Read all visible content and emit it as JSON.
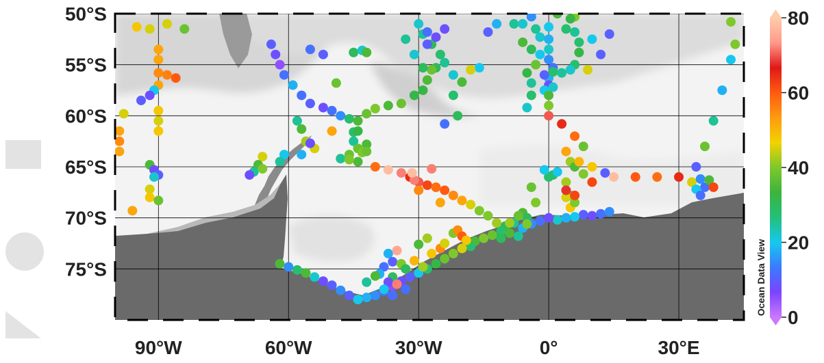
{
  "map": {
    "extent": {
      "lon_min": -100,
      "lon_max": 45,
      "lat_min": -80,
      "lat_max": -50
    },
    "lat_ticks": [
      {
        "value": -50,
        "label": "50°S"
      },
      {
        "value": -55,
        "label": "55°S"
      },
      {
        "value": -60,
        "label": "60°S"
      },
      {
        "value": -65,
        "label": "65°S"
      },
      {
        "value": -70,
        "label": "70°S"
      },
      {
        "value": -75,
        "label": "75°S"
      }
    ],
    "lon_ticks": [
      {
        "value": -90,
        "label": "90°W"
      },
      {
        "value": -60,
        "label": "60°W"
      },
      {
        "value": -30,
        "label": "30°W"
      },
      {
        "value": 0,
        "label": "0°"
      },
      {
        "value": 30,
        "label": "30°E"
      }
    ],
    "colors": {
      "land": "#6a6a6a",
      "ocean_light": "#f3f3f3",
      "ocean_mid": "#dcdcdc",
      "ice_shelf": "#eaeaea",
      "grid": "#000000"
    }
  },
  "colorbar": {
    "title": "Ocean Data View",
    "range": [
      0,
      80
    ],
    "ticks": [
      {
        "value": 80,
        "label": "80"
      },
      {
        "value": 60,
        "label": "60"
      },
      {
        "value": 40,
        "label": "40"
      },
      {
        "value": 20,
        "label": "20"
      },
      {
        "value": 0,
        "label": "0"
      }
    ],
    "stops": [
      "#cc77ff",
      "#7a44ff",
      "#3a7bff",
      "#16c8ee",
      "#22c07a",
      "#3cb43c",
      "#7ec82c",
      "#f2d200",
      "#ff9a10",
      "#ff5a10",
      "#e01818",
      "#ff9a8a",
      "#ffccaa"
    ]
  },
  "chart_data": {
    "type": "scatter",
    "x_label": "",
    "y_label": "",
    "value_range": [
      0,
      80
    ],
    "points": [
      [
        -95,
        -51.3,
        48
      ],
      [
        -92,
        -51.5,
        45
      ],
      [
        -88,
        -51,
        45
      ],
      [
        -84,
        -51.5,
        38
      ],
      [
        -90,
        -53.5,
        52
      ],
      [
        -90,
        -54.5,
        52
      ],
      [
        -90,
        -55.8,
        55
      ],
      [
        -88,
        -56,
        56
      ],
      [
        -86,
        -56.3,
        60
      ],
      [
        -90,
        -57,
        52
      ],
      [
        -91,
        -57.5,
        20
      ],
      [
        -92,
        -58,
        8
      ],
      [
        -94,
        -58.5,
        10
      ],
      [
        -90,
        -59.5,
        48
      ],
      [
        -90,
        -60.5,
        45
      ],
      [
        -90,
        -61.5,
        48
      ],
      [
        -98,
        -59.8,
        45
      ],
      [
        -99,
        -61.5,
        52
      ],
      [
        -99,
        -62.5,
        55
      ],
      [
        -99,
        -63.5,
        52
      ],
      [
        -92,
        -64.8,
        35
      ],
      [
        -91,
        -65.3,
        8
      ],
      [
        -90,
        -65.8,
        10
      ],
      [
        -91,
        -66,
        22
      ],
      [
        -92,
        -67.2,
        45
      ],
      [
        -92,
        -68,
        48
      ],
      [
        -90,
        -68.3,
        38
      ],
      [
        -96,
        -69.3,
        52
      ],
      [
        -64,
        -53,
        10
      ],
      [
        -63,
        -54,
        8
      ],
      [
        -62,
        -55,
        5
      ],
      [
        -61,
        -56,
        12
      ],
      [
        -59,
        -57,
        18
      ],
      [
        -57,
        -58,
        12
      ],
      [
        -55,
        -58.8,
        10
      ],
      [
        -52,
        -59.2,
        8
      ],
      [
        -50,
        -59.5,
        12
      ],
      [
        -48,
        -60,
        15
      ],
      [
        -46,
        -60.3,
        28
      ],
      [
        -44,
        -60.5,
        35
      ],
      [
        -42,
        -59.8,
        38
      ],
      [
        -40,
        -59.3,
        40
      ],
      [
        -37,
        -59,
        35
      ],
      [
        -34,
        -58.8,
        38
      ],
      [
        -31,
        -58,
        32
      ],
      [
        -29,
        -57.5,
        32
      ],
      [
        -28,
        -56.5,
        35
      ],
      [
        -26,
        -55.3,
        30
      ],
      [
        -24,
        -54.8,
        25
      ],
      [
        -22,
        -56,
        22
      ],
      [
        -22,
        -58,
        28
      ],
      [
        -21,
        -60,
        30
      ],
      [
        -24,
        -60.8,
        12
      ],
      [
        -30,
        -51,
        22
      ],
      [
        -29,
        -52,
        25
      ],
      [
        -27,
        -53,
        30
      ],
      [
        -25,
        -54,
        28
      ],
      [
        -27,
        -55.5,
        38
      ],
      [
        -29,
        -55.3,
        30
      ],
      [
        -31,
        -54,
        22
      ],
      [
        -33,
        -52.5,
        25
      ],
      [
        -26,
        -52.3,
        8
      ],
      [
        -28,
        -53,
        10
      ],
      [
        -28,
        -51.8,
        12
      ],
      [
        -24,
        -51.5,
        8
      ],
      [
        -12,
        -51,
        18
      ],
      [
        -14,
        -51.8,
        10
      ],
      [
        -16,
        -55.3,
        20
      ],
      [
        -18,
        -55.5,
        45
      ],
      [
        -20,
        -56.7,
        35
      ],
      [
        -55,
        -53.5,
        12
      ],
      [
        -52,
        -54,
        10
      ],
      [
        -49,
        -56.8,
        38
      ],
      [
        -45,
        -53.8,
        30
      ],
      [
        -43,
        -53.6,
        22
      ],
      [
        -42,
        -53.8,
        35
      ],
      [
        -50,
        -61.5,
        52
      ],
      [
        -45,
        -61.6,
        28
      ],
      [
        -44,
        -61.5,
        32
      ],
      [
        -45,
        -62.5,
        25
      ],
      [
        -44,
        -63.2,
        38
      ],
      [
        -43,
        -63.6,
        40
      ],
      [
        -46,
        -63.8,
        38
      ],
      [
        -44,
        -64.5,
        35
      ],
      [
        -42,
        -62.8,
        35
      ],
      [
        -42,
        -63.5,
        38
      ],
      [
        -48,
        -64.2,
        25
      ],
      [
        -46,
        -64.3,
        40
      ],
      [
        -58,
        -60.5,
        25
      ],
      [
        -57,
        -61.3,
        35
      ],
      [
        -56,
        -62.5,
        42
      ],
      [
        -54,
        -63.2,
        45
      ],
      [
        -55,
        -62.7,
        8
      ],
      [
        -57,
        -63.8,
        18
      ],
      [
        -61,
        -63.8,
        20
      ],
      [
        -62,
        -64.5,
        25
      ],
      [
        -66,
        -64,
        45
      ],
      [
        -67,
        -64.8,
        35
      ],
      [
        -68,
        -65.5,
        25
      ],
      [
        -69,
        -65.8,
        8
      ],
      [
        -66,
        -65.2,
        40
      ],
      [
        -40,
        -65,
        58
      ],
      [
        -37,
        -65.3,
        78
      ],
      [
        -34,
        -65.6,
        72
      ],
      [
        -32,
        -66,
        65
      ],
      [
        -30,
        -66.5,
        70
      ],
      [
        -28,
        -66.8,
        62
      ],
      [
        -26,
        -67,
        58
      ],
      [
        -24,
        -67.3,
        60
      ],
      [
        -22,
        -67.8,
        55
      ],
      [
        -20,
        -68.3,
        52
      ],
      [
        -18,
        -68.7,
        45
      ],
      [
        -16,
        -69.3,
        40
      ],
      [
        -14,
        -69.8,
        40
      ],
      [
        -12,
        -70.5,
        42
      ],
      [
        -30,
        -67.3,
        55
      ],
      [
        -31,
        -66.3,
        72
      ],
      [
        -27,
        -65.2,
        72
      ],
      [
        -25,
        -68.5,
        52
      ],
      [
        -31.5,
        -65.6,
        78
      ],
      [
        -8,
        -51,
        25
      ],
      [
        -6,
        -51,
        22
      ],
      [
        -4,
        -50.3,
        15
      ],
      [
        -3,
        -51.5,
        25
      ],
      [
        -2,
        -52.3,
        22
      ],
      [
        -6,
        -52.8,
        35
      ],
      [
        -4,
        -53.5,
        30
      ],
      [
        -2,
        -54,
        20
      ],
      [
        -3,
        -55,
        38
      ],
      [
        -5,
        -55.8,
        32
      ],
      [
        -4,
        -56.8,
        25
      ],
      [
        -4,
        -58,
        28
      ],
      [
        -5,
        -59.2,
        22
      ],
      [
        0,
        -51.3,
        20
      ],
      [
        0,
        -52.5,
        18
      ],
      [
        0,
        -53.5,
        22
      ],
      [
        0,
        -54.5,
        15
      ],
      [
        1,
        -55.3,
        12
      ],
      [
        0,
        -56.3,
        18
      ],
      [
        -1,
        -56,
        10
      ],
      [
        0,
        -57,
        8
      ],
      [
        -1,
        -57.5,
        20
      ],
      [
        1,
        -57.2,
        22
      ],
      [
        0,
        -58,
        35
      ],
      [
        0,
        -59,
        40
      ],
      [
        0,
        -60,
        70
      ],
      [
        1,
        -55.7,
        28
      ],
      [
        6,
        -50.3,
        40
      ],
      [
        6,
        -51.8,
        25
      ],
      [
        7,
        -52.8,
        28
      ],
      [
        7,
        -53.8,
        32
      ],
      [
        6,
        -55,
        28
      ],
      [
        5,
        -55.5,
        22
      ],
      [
        3,
        -55.8,
        25
      ],
      [
        9,
        -55.5,
        45
      ],
      [
        10,
        -52.5,
        20
      ],
      [
        12,
        -54,
        10
      ],
      [
        14,
        -52,
        10
      ],
      [
        4,
        -51.5,
        28
      ],
      [
        2,
        -50,
        35
      ],
      [
        5,
        -50.5,
        32
      ],
      [
        3,
        -60.8,
        65
      ],
      [
        6,
        -62,
        58
      ],
      [
        8,
        -63,
        38
      ],
      [
        4,
        -63.5,
        52
      ],
      [
        5,
        -64.5,
        42
      ],
      [
        6,
        -65,
        35
      ],
      [
        7,
        -64.5,
        50
      ],
      [
        8,
        -65.7,
        40
      ],
      [
        10,
        -65,
        48
      ],
      [
        10,
        -66.5,
        62
      ],
      [
        13,
        -65.6,
        10
      ],
      [
        15,
        -66,
        78
      ],
      [
        1,
        -65.8,
        28
      ],
      [
        2,
        -65.5,
        20
      ],
      [
        0,
        -66,
        28
      ],
      [
        4,
        -66.5,
        42
      ],
      [
        5,
        -67.8,
        40
      ],
      [
        4,
        -68,
        45
      ],
      [
        5,
        -69,
        48
      ],
      [
        6,
        -68.5,
        40
      ],
      [
        6,
        -67.8,
        62
      ],
      [
        4,
        -67.3,
        68
      ],
      [
        -1,
        -65.3,
        20
      ],
      [
        -4,
        -67,
        38
      ],
      [
        -3,
        -68.5,
        40
      ],
      [
        -6,
        -69.5,
        35
      ],
      [
        -5,
        -70,
        30
      ],
      [
        -8,
        -70.5,
        25
      ],
      [
        -10,
        -70.8,
        30
      ],
      [
        -11,
        -71.3,
        28
      ],
      [
        -13,
        -71.7,
        38
      ],
      [
        -15,
        -72,
        40
      ],
      [
        -17,
        -72.3,
        35
      ],
      [
        -18,
        -72.8,
        28
      ],
      [
        -20,
        -73,
        45
      ],
      [
        -22,
        -73.5,
        40
      ],
      [
        -24,
        -74,
        38
      ],
      [
        -26,
        -74.5,
        32
      ],
      [
        -28,
        -75,
        28
      ],
      [
        -30,
        -75.4,
        20
      ],
      [
        -32,
        -75.8,
        10
      ],
      [
        -34,
        -76.2,
        8
      ],
      [
        -36,
        -76.7,
        5
      ],
      [
        -38,
        -77.2,
        12
      ],
      [
        -40,
        -77.6,
        15
      ],
      [
        -42,
        -77.8,
        18
      ],
      [
        -44,
        -78,
        20
      ],
      [
        -46,
        -77.6,
        10
      ],
      [
        -48,
        -77.1,
        15
      ],
      [
        -50,
        -76.6,
        10
      ],
      [
        -52,
        -76.2,
        8
      ],
      [
        -54,
        -75.8,
        22
      ],
      [
        -56,
        -75.4,
        35
      ],
      [
        -58,
        -75.1,
        28
      ],
      [
        -60,
        -74.8,
        15
      ],
      [
        -62,
        -74.5,
        35
      ],
      [
        -37,
        -73.5,
        18
      ],
      [
        -36,
        -74.3,
        10
      ],
      [
        -35,
        -73.2,
        75
      ],
      [
        -34,
        -74.5,
        40
      ],
      [
        -33,
        -75,
        30
      ],
      [
        -31,
        -74.2,
        50
      ],
      [
        -29,
        -74.8,
        42
      ],
      [
        -27,
        -73.5,
        48
      ],
      [
        -25,
        -73,
        55
      ],
      [
        -24,
        -72.5,
        45
      ],
      [
        -22,
        -71.5,
        40
      ],
      [
        -21,
        -71.2,
        55
      ],
      [
        -20,
        -71.8,
        60
      ],
      [
        -19,
        -72.2,
        48
      ],
      [
        -28,
        -72,
        42
      ],
      [
        -30,
        -72.6,
        35
      ],
      [
        -38,
        -74.8,
        12
      ],
      [
        -39,
        -75.5,
        18
      ],
      [
        -36,
        -75.8,
        30
      ],
      [
        -37,
        -76.3,
        8
      ],
      [
        -35,
        -76.5,
        72
      ],
      [
        -33,
        -77,
        12
      ],
      [
        -38,
        -77,
        20
      ],
      [
        -40,
        -75.7,
        35
      ],
      [
        -42,
        -76.3,
        25
      ],
      [
        -36,
        -77.6,
        12
      ],
      [
        8,
        -69.7,
        10
      ],
      [
        10,
        -69.8,
        8
      ],
      [
        12,
        -69.6,
        12
      ],
      [
        14,
        -69.4,
        15
      ],
      [
        6,
        -69.9,
        20
      ],
      [
        4,
        -70,
        18
      ],
      [
        2,
        -70.2,
        22
      ],
      [
        0,
        -70,
        8
      ],
      [
        -2,
        -70.3,
        12
      ],
      [
        -4,
        -70.6,
        15
      ],
      [
        -6,
        -71,
        18
      ],
      [
        -7,
        -69.8,
        38
      ],
      [
        -9,
        -70.5,
        42
      ],
      [
        -5,
        -70.6,
        40
      ],
      [
        -7,
        -71.8,
        25
      ],
      [
        -9,
        -71.5,
        35
      ],
      [
        -11,
        -72,
        30
      ],
      [
        20,
        -66,
        60
      ],
      [
        25,
        -66,
        58
      ],
      [
        30,
        -66,
        65
      ],
      [
        33,
        -66.5,
        45
      ],
      [
        34,
        -65,
        10
      ],
      [
        35,
        -66.2,
        15
      ],
      [
        36,
        -67,
        12
      ],
      [
        37,
        -66.3,
        35
      ],
      [
        38,
        -67,
        62
      ],
      [
        34,
        -67.2,
        20
      ],
      [
        35,
        -67.8,
        12
      ],
      [
        36,
        -63,
        38
      ],
      [
        38,
        -60.5,
        25
      ],
      [
        40,
        -57.5,
        18
      ],
      [
        42,
        -54.5,
        20
      ],
      [
        43,
        -53,
        40
      ],
      [
        42,
        -50.8,
        40
      ]
    ]
  }
}
